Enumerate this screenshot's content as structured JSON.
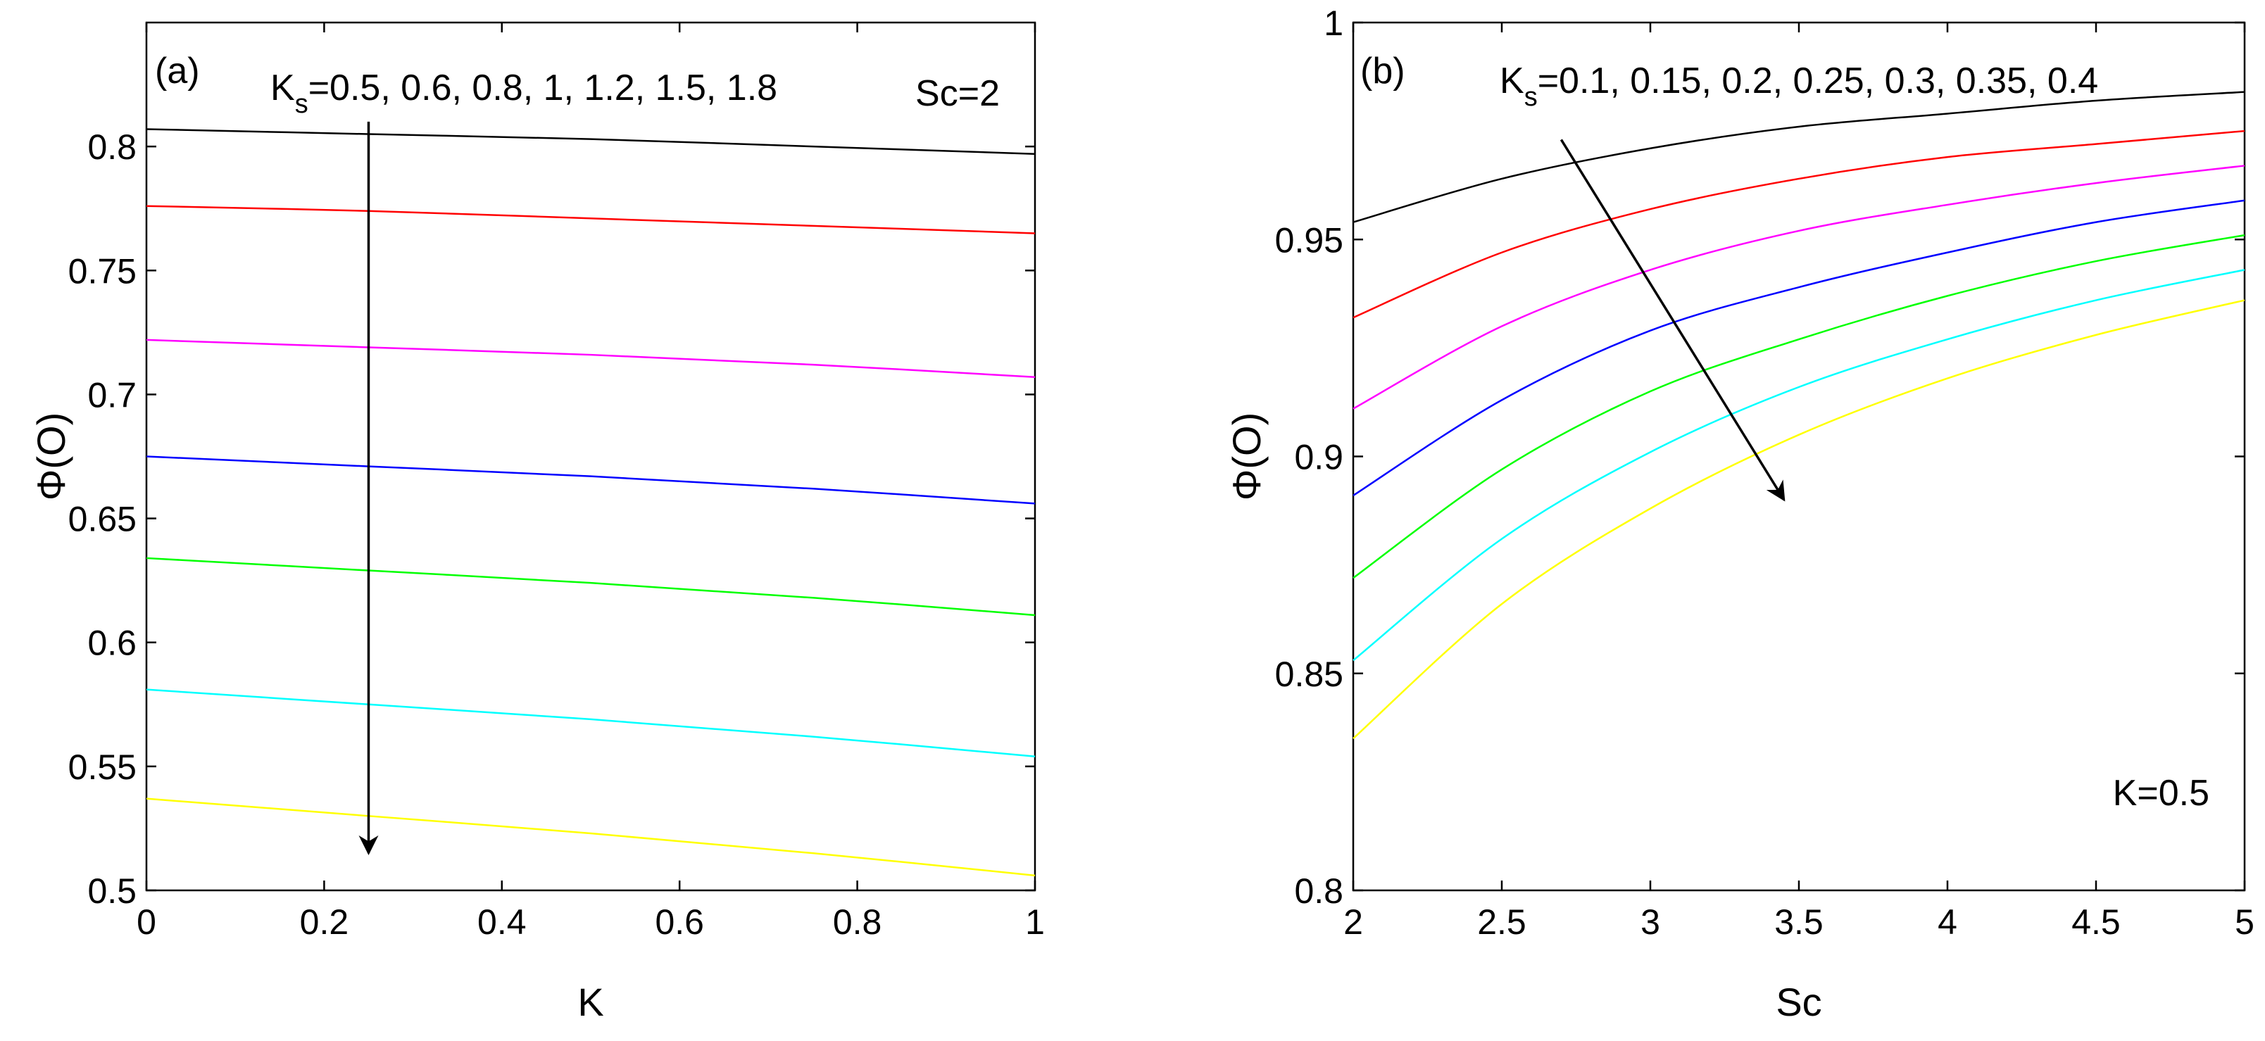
{
  "chart_data": [
    {
      "type": "line",
      "panel_label": "(a)",
      "xlabel": "K",
      "ylabel": "Φ(O)",
      "xlim": [
        0,
        1
      ],
      "ylim": [
        0.5,
        0.85
      ],
      "xticks": [
        0,
        0.2,
        0.4,
        0.6,
        0.8,
        1
      ],
      "xtick_labels": [
        "0",
        "0.2",
        "0.4",
        "0.6",
        "0.8",
        "1"
      ],
      "yticks": [
        0.5,
        0.55,
        0.6,
        0.65,
        0.7,
        0.75,
        0.8
      ],
      "ytick_labels": [
        "0.5",
        "0.55",
        "0.6",
        "0.65",
        "0.7",
        "0.75",
        "0.8"
      ],
      "param_main": "K",
      "param_sub": "s",
      "param_values": "=0.5, 0.6, 0.8, 1, 1.2, 1.5, 1.8",
      "fixed_param": "Sc=2",
      "arrow": {
        "from": [
          0.25,
          0.81
        ],
        "to": [
          0.25,
          0.515
        ]
      },
      "x": [
        0,
        0.25,
        0.5,
        0.75,
        1
      ],
      "series": [
        {
          "name": "Ks=0.5",
          "color": "#000000",
          "values": [
            0.807,
            0.805,
            0.803,
            0.8,
            0.797
          ]
        },
        {
          "name": "Ks=0.6",
          "color": "#ff0000",
          "values": [
            0.776,
            0.774,
            0.771,
            0.768,
            0.765
          ]
        },
        {
          "name": "Ks=0.8",
          "color": "#ff00ff",
          "values": [
            0.722,
            0.719,
            0.716,
            0.712,
            0.707
          ]
        },
        {
          "name": "Ks=1",
          "color": "#0000ff",
          "values": [
            0.675,
            0.671,
            0.667,
            0.662,
            0.656
          ]
        },
        {
          "name": "Ks=1.2",
          "color": "#00ff00",
          "values": [
            0.634,
            0.629,
            0.624,
            0.618,
            0.611
          ]
        },
        {
          "name": "Ks=1.5",
          "color": "#00ffff",
          "values": [
            0.581,
            0.575,
            0.569,
            0.562,
            0.554
          ]
        },
        {
          "name": "Ks=1.8",
          "color": "#ffff00",
          "values": [
            0.537,
            0.53,
            0.523,
            0.515,
            0.506
          ]
        }
      ]
    },
    {
      "type": "line",
      "panel_label": "(b)",
      "xlabel": "Sc",
      "ylabel": "Φ(O)",
      "xlim": [
        2,
        5
      ],
      "ylim": [
        0.8,
        1.0
      ],
      "xticks": [
        2,
        2.5,
        3,
        3.5,
        4,
        4.5,
        5
      ],
      "xtick_labels": [
        "2",
        "2.5",
        "3",
        "3.5",
        "4",
        "4.5",
        "5"
      ],
      "yticks": [
        0.8,
        0.85,
        0.9,
        0.95,
        1.0
      ],
      "ytick_labels": [
        "0.8",
        "0.85",
        "0.9",
        "0.95",
        "1"
      ],
      "param_main": "K",
      "param_sub": "s",
      "param_values": "=0.1, 0.15, 0.2, 0.25, 0.3, 0.35, 0.4",
      "fixed_param": "K=0.5",
      "arrow": {
        "from": [
          2.7,
          0.973
        ],
        "to": [
          3.45,
          0.89
        ]
      },
      "x": [
        2,
        2.5,
        3,
        3.5,
        4,
        4.5,
        5
      ],
      "series": [
        {
          "name": "Ks=0.1",
          "color": "#000000",
          "values": [
            0.954,
            0.964,
            0.971,
            0.976,
            0.979,
            0.982,
            0.984
          ]
        },
        {
          "name": "Ks=0.15",
          "color": "#ff0000",
          "values": [
            0.932,
            0.947,
            0.957,
            0.964,
            0.969,
            0.972,
            0.975
          ]
        },
        {
          "name": "Ks=0.2",
          "color": "#ff00ff",
          "values": [
            0.911,
            0.93,
            0.943,
            0.952,
            0.958,
            0.963,
            0.967
          ]
        },
        {
          "name": "Ks=0.25",
          "color": "#0000ff",
          "values": [
            0.891,
            0.913,
            0.929,
            0.939,
            0.947,
            0.954,
            0.959
          ]
        },
        {
          "name": "Ks=0.3",
          "color": "#00ff00",
          "values": [
            0.872,
            0.897,
            0.915,
            0.927,
            0.937,
            0.945,
            0.951
          ]
        },
        {
          "name": "Ks=0.35",
          "color": "#00ffff",
          "values": [
            0.853,
            0.881,
            0.901,
            0.916,
            0.927,
            0.936,
            0.943
          ]
        },
        {
          "name": "Ks=0.4",
          "color": "#ffff00",
          "values": [
            0.835,
            0.866,
            0.888,
            0.905,
            0.918,
            0.928,
            0.936
          ]
        }
      ]
    }
  ]
}
